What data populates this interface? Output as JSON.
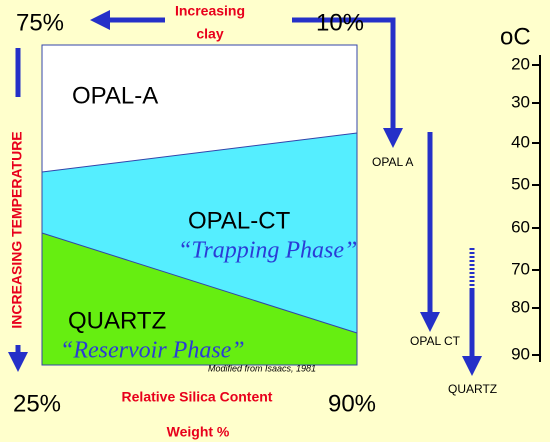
{
  "header": {
    "left_percent": "75%",
    "clay_label": [
      "Increasing",
      "clay"
    ],
    "right_percent": "10%"
  },
  "temperature_scale": {
    "unit_label": "oC",
    "ticks": [
      "20",
      "30",
      "40",
      "50",
      "60",
      "70",
      "80",
      "90"
    ]
  },
  "side_label": "INCREASING TEMPERATURE",
  "regions": {
    "opal_a": "OPAL-A",
    "opal_ct": "OPAL-CT",
    "opal_ct_note": "“Trapping Phase”",
    "quartz": "QUARTZ",
    "quartz_note": "“Reservoir Phase”"
  },
  "source": "Modified from Isaacs, 1981",
  "footer": {
    "left_percent": "25%",
    "right_percent": "90%",
    "axis_label": "Relative Silica Content",
    "unit": "Weight %"
  },
  "arrows": {
    "opal_a": "OPAL A",
    "opal_ct": "OPAL CT",
    "quartz": "QUARTZ"
  }
}
